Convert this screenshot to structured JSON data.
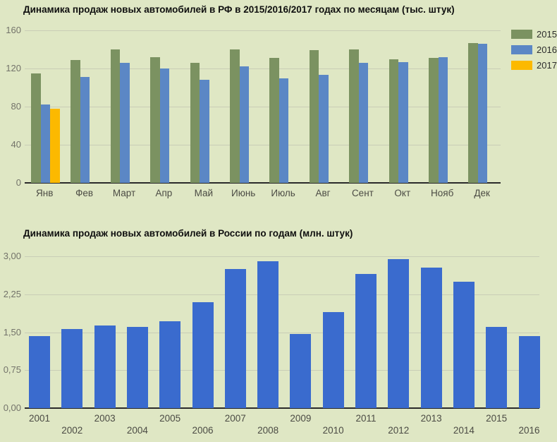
{
  "page": {
    "background_color": "#dfe7c4",
    "gridline_color": "#c9cdb6",
    "axis_color": "#2a2a2a"
  },
  "chart_data": [
    {
      "type": "bar",
      "title": "Динамика продаж новых автомобилей в РФ в 2015/2016/2017 годах по месяцам (тыс. штук)",
      "unit": "тыс. штук",
      "categories": [
        "Янв",
        "Фев",
        "Март",
        "Апр",
        "Май",
        "Июнь",
        "Июль",
        "Авг",
        "Сент",
        "Окт",
        "Нояб",
        "Дек"
      ],
      "series": [
        {
          "name": "2015",
          "color": "#7b9261",
          "values": [
            115,
            129,
            140,
            132,
            126,
            140,
            131,
            139,
            140,
            130,
            131,
            147
          ]
        },
        {
          "name": "2016",
          "color": "#5b87c5",
          "values": [
            82,
            111,
            126,
            120,
            108,
            122,
            110,
            113,
            126,
            127,
            132,
            146
          ]
        },
        {
          "name": "2017",
          "color": "#fcb900",
          "values": [
            78,
            null,
            null,
            null,
            null,
            null,
            null,
            null,
            null,
            null,
            null,
            null
          ]
        }
      ],
      "ylim": [
        0,
        160
      ],
      "yticks": [
        {
          "value": 0,
          "label": "0"
        },
        {
          "value": 40,
          "label": "40"
        },
        {
          "value": 80,
          "label": "80"
        },
        {
          "value": 120,
          "label": "120"
        },
        {
          "value": 160,
          "label": "160"
        }
      ],
      "grid": true,
      "legend_position": "top-right"
    },
    {
      "type": "bar",
      "title": "Динамика продаж новых автомобилей в России по годам (млн. штук)",
      "unit": "млн. штук",
      "categories": [
        "2001",
        "2002",
        "2003",
        "2004",
        "2005",
        "2006",
        "2007",
        "2008",
        "2009",
        "2010",
        "2011",
        "2012",
        "2013",
        "2014",
        "2015",
        "2016"
      ],
      "series": [
        {
          "name": "",
          "color": "#3a6bce",
          "values": [
            1.43,
            1.56,
            1.63,
            1.61,
            1.72,
            2.1,
            2.75,
            2.9,
            1.46,
            1.9,
            2.65,
            2.94,
            2.77,
            2.5,
            1.6,
            1.43
          ]
        }
      ],
      "ylim": [
        0,
        3
      ],
      "yticks": [
        {
          "value": 0,
          "label": "0,00"
        },
        {
          "value": 0.75,
          "label": "0,75"
        },
        {
          "value": 1.5,
          "label": "1,50"
        },
        {
          "value": 2.25,
          "label": "2,25"
        },
        {
          "value": 3,
          "label": "3,00"
        }
      ],
      "grid": true,
      "legend_position": "none",
      "x_label_layout": "staggered"
    }
  ]
}
